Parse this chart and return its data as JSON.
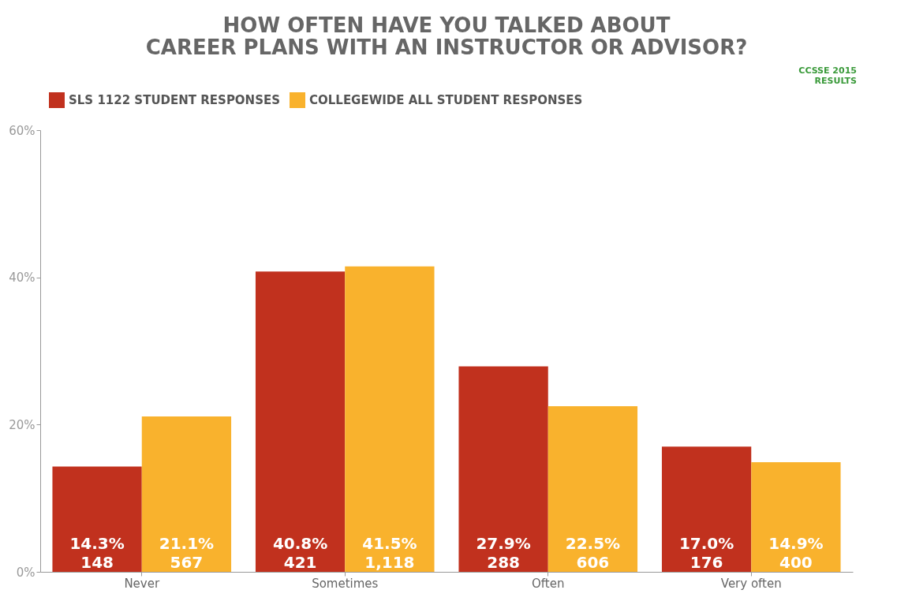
{
  "chart_data": {
    "type": "bar",
    "title": "HOW OFTEN HAVE YOU TALKED ABOUT\nCAREER PLANS WITH AN INSTRUCTOR OR ADVISOR?",
    "annotations": [
      "CCSSE 2015\nRESULTS"
    ],
    "categories": [
      "Never",
      "Sometimes",
      "Often",
      "Very often"
    ],
    "series": [
      {
        "name": "SLS 1122 STUDENT RESPONSES",
        "color": "#c1311e",
        "values": [
          14.3,
          40.8,
          27.9,
          17.0
        ],
        "value_labels": [
          "14.3%\n148",
          "40.8%\n421",
          "27.9%\n288",
          "17.0%\n176"
        ]
      },
      {
        "name": "COLLEGEWIDE ALL STUDENT RESPONSES",
        "color": "#f9b22d",
        "values": [
          21.1,
          41.5,
          22.5,
          14.9
        ],
        "value_labels": [
          "21.1%\n567",
          "41.5%\n1,118",
          "22.5%\n606",
          "14.9%\n400"
        ]
      }
    ],
    "ylim": [
      0,
      60
    ],
    "yticks": [
      {
        "value": 0,
        "label": "0%"
      },
      {
        "value": 20,
        "label": "20%"
      },
      {
        "value": 40,
        "label": "40%"
      },
      {
        "value": 60,
        "label": "60%"
      }
    ],
    "grid": false,
    "legend": "top"
  }
}
